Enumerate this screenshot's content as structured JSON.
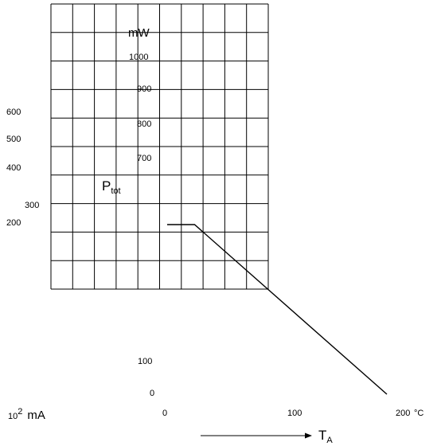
{
  "chart_data": {
    "type": "line",
    "x": [
      0,
      25,
      200
    ],
    "series": [
      {
        "values": [
          200,
          200,
          0
        ]
      }
    ],
    "xlim": [
      0,
      200
    ],
    "ylim": [
      0,
      1000
    ],
    "grid": true,
    "title": "",
    "ylabel_main": "P",
    "ylabel_sub": "tot",
    "yunit": "mW",
    "xlabel_main": "T",
    "xlabel_sub": "A",
    "xunit": "°C",
    "left_scale_exponent_base": "10",
    "left_scale_exponent": "2",
    "left_scale_unit": "mA",
    "yticks_inner": [
      "1000",
      "900",
      "800",
      "700"
    ],
    "yticks_left": [
      "600",
      "500",
      "400",
      "300",
      "200"
    ],
    "yticks_bottom": [
      "100",
      "0"
    ],
    "xticks": [
      "0",
      "100",
      "200"
    ],
    "colors": {
      "line": "#000000",
      "grid": "#000000"
    }
  }
}
